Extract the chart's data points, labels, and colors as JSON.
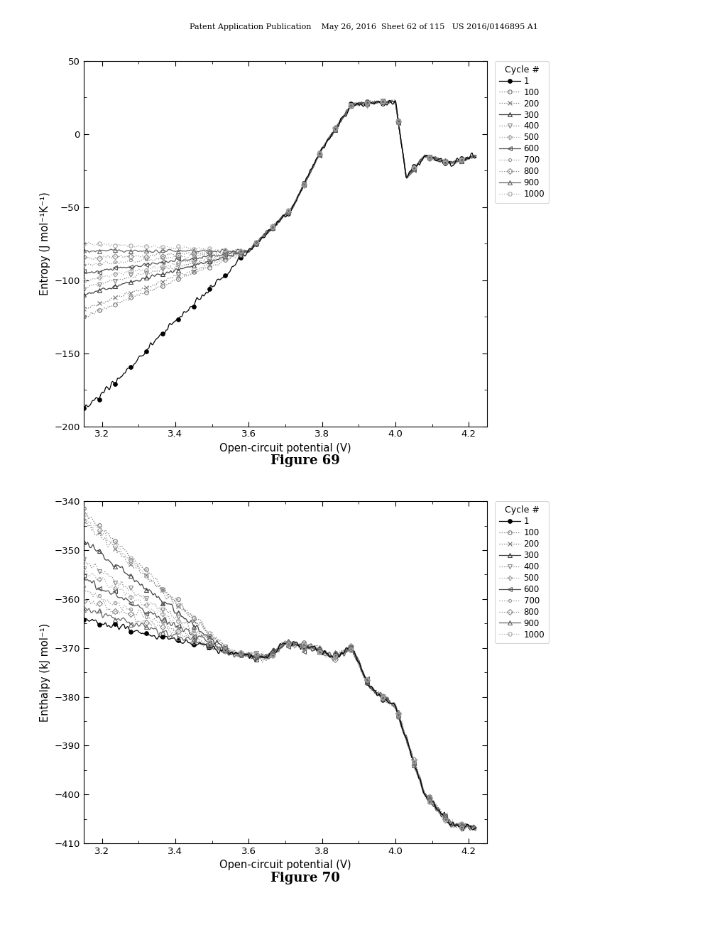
{
  "header_text": "Patent Application Publication    May 26, 2016  Sheet 62 of 115   US 2016/0146895 A1",
  "fig69_title": "Figure 69",
  "fig70_title": "Figure 70",
  "xlabel": "Open-circuit potential (V)",
  "ylabel1": "Entropy (J mol⁻¹K⁻¹)",
  "ylabel2": "Enthalpy (kJ mol⁻¹)",
  "xlim": [
    3.15,
    4.25
  ],
  "ylim1": [
    -200,
    50
  ],
  "ylim2": [
    -410,
    -340
  ],
  "xticks": [
    3.2,
    3.4,
    3.6,
    3.8,
    4.0,
    4.2
  ],
  "yticks1": [
    -200,
    -150,
    -100,
    -50,
    0,
    50
  ],
  "yticks2": [
    -410,
    -400,
    -390,
    -380,
    -370,
    -360,
    -350,
    -340
  ],
  "cycles": [
    1,
    100,
    200,
    300,
    400,
    500,
    600,
    700,
    800,
    900,
    1000
  ],
  "legend_title": "Cycle #",
  "bg_color": "#ffffff",
  "entropy_start_vals": [
    -190,
    -125,
    -120,
    -110,
    -105,
    -100,
    -95,
    -90,
    -85,
    -80,
    -75
  ],
  "enthalpy_start_vals": [
    -364,
    -342,
    -344,
    -348,
    -352,
    -354,
    -356,
    -358,
    -360,
    -362,
    -343
  ]
}
